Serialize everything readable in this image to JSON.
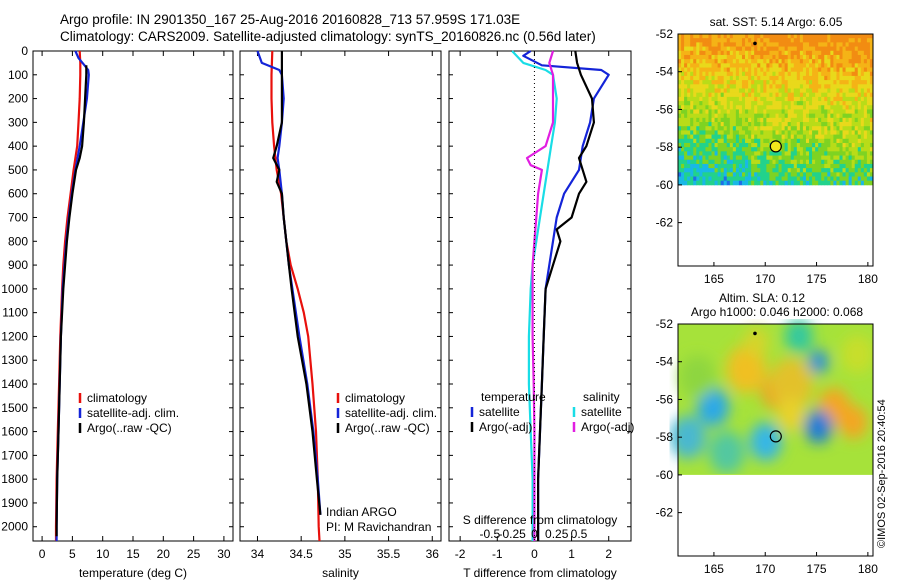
{
  "header": {
    "line1": "Argo profile: IN 2901350_167 25-Aug-2016 20160828_713 57.959S 171.03E",
    "line2": "Climatology: CARS2009. Satellite-adjusted climatology: synTS_20160826.nc (0.56d later)"
  },
  "credit": "©IMOS 02-Sep-2016 20:40:54",
  "colors": {
    "climatology": "#e8100c",
    "satellite": "#1424d8",
    "argo": "#000000",
    "cyan": "#19dde6",
    "magenta": "#e11ee1"
  },
  "chart_data": [
    {
      "type": "line",
      "panel": "temperature",
      "xlabel": "temperature (deg C)",
      "ylabel": "",
      "xlim": [
        -1.5,
        31.5
      ],
      "ylim": [
        2060,
        0
      ],
      "xticks": [
        0,
        5,
        10,
        15,
        20,
        25,
        30
      ],
      "yticks": [
        0,
        100,
        200,
        300,
        400,
        500,
        600,
        700,
        800,
        900,
        1000,
        1100,
        1200,
        1300,
        1400,
        1500,
        1600,
        1700,
        1800,
        1900,
        2000
      ],
      "legend": [
        "climatology",
        "satellite-adj. clim.",
        "Argo(..raw -QC)"
      ],
      "series": [
        {
          "name": "climatology",
          "color": "climatology",
          "y": [
            0,
            50,
            100,
            200,
            300,
            400,
            500,
            600,
            700,
            800,
            900,
            1000,
            1200,
            1400,
            1600,
            1800,
            2000,
            2060
          ],
          "x": [
            6.2,
            6.3,
            6.3,
            6.2,
            6.0,
            5.8,
            5.2,
            4.7,
            4.2,
            3.8,
            3.5,
            3.3,
            3.0,
            2.8,
            2.6,
            2.4,
            2.3,
            2.3
          ]
        },
        {
          "name": "satellite-adj. clim.",
          "color": "satellite",
          "y": [
            0,
            30,
            60,
            80,
            100,
            200,
            300,
            400,
            500,
            600,
            700,
            800,
            900,
            1000,
            1200,
            1400,
            1600,
            1800,
            2000,
            2060
          ],
          "x": [
            5.5,
            6.0,
            7.0,
            7.6,
            7.7,
            7.4,
            6.8,
            6.2,
            5.5,
            4.9,
            4.4,
            4.0,
            3.7,
            3.4,
            3.1,
            2.9,
            2.7,
            2.5,
            2.4,
            2.4
          ]
        },
        {
          "name": "Argo(..raw -QC)",
          "color": "argo",
          "y": [
            60,
            100,
            150,
            200,
            300,
            400,
            450,
            500,
            600,
            700,
            800,
            900,
            1000,
            1200,
            1400,
            1600,
            1800,
            2000,
            2040
          ],
          "x": [
            7.3,
            7.3,
            7.2,
            7.1,
            6.9,
            6.6,
            6.2,
            5.6,
            5.0,
            4.5,
            4.1,
            3.8,
            3.5,
            3.1,
            2.9,
            2.7,
            2.5,
            2.4,
            2.4
          ]
        }
      ]
    },
    {
      "type": "line",
      "panel": "salinity",
      "xlabel": "salinity",
      "xlim": [
        33.8,
        36.1
      ],
      "ylim": [
        2060,
        0
      ],
      "xticks": [
        34,
        34.5,
        35,
        35.5,
        36
      ],
      "legend": [
        "climatology",
        "satellite-adj. clim.",
        "Argo(..raw -QC)"
      ],
      "annotation": [
        "Indian ARGO",
        "PI: M Ravichandran"
      ],
      "series": [
        {
          "name": "climatology",
          "color": "climatology",
          "y": [
            0,
            100,
            200,
            300,
            400,
            500,
            600,
            700,
            800,
            900,
            1000,
            1100,
            1200,
            1400,
            1600,
            1800,
            2000,
            2060
          ],
          "x": [
            34.17,
            34.16,
            34.16,
            34.17,
            34.19,
            34.22,
            34.27,
            34.3,
            34.33,
            34.38,
            34.46,
            34.53,
            34.58,
            34.63,
            34.67,
            34.69,
            34.7,
            34.71
          ]
        },
        {
          "name": "satellite-adj. clim.",
          "color": "satellite",
          "y": [
            0,
            50,
            80,
            100,
            200,
            300,
            400,
            450,
            500,
            600,
            700,
            800,
            900,
            1000,
            1200,
            1400,
            1600,
            1800,
            1950
          ],
          "x": [
            34.0,
            34.05,
            34.25,
            34.28,
            34.3,
            34.28,
            34.25,
            34.23,
            34.25,
            34.28,
            34.3,
            34.33,
            34.36,
            34.4,
            34.48,
            34.57,
            34.64,
            34.69,
            34.72
          ]
        },
        {
          "name": "Argo(..raw -QC)",
          "color": "argo",
          "y": [
            0,
            100,
            200,
            300,
            400,
            450,
            500,
            550,
            600,
            700,
            800,
            900,
            1000,
            1200,
            1400,
            1600,
            1800,
            1950
          ],
          "x": [
            34.28,
            34.28,
            34.28,
            34.28,
            34.22,
            34.18,
            34.25,
            34.22,
            34.28,
            34.3,
            34.33,
            34.36,
            34.39,
            34.46,
            34.56,
            34.63,
            34.68,
            34.72
          ]
        }
      ]
    },
    {
      "type": "line",
      "panel": "difference",
      "xlabel": "T difference from climatology",
      "xlabel_top": "S difference from climatology",
      "xlim": [
        -2.3,
        2.6
      ],
      "ylim": [
        2060,
        0
      ],
      "xticks": [
        -2,
        -1,
        0,
        1,
        2
      ],
      "xticks_s": [
        "-0.5",
        "-0.25",
        "0",
        "0.25",
        "0.5"
      ],
      "legend_titles": [
        "temperature",
        "salinity"
      ],
      "legend": [
        "satellite",
        "Argo(-adj)",
        "satellite",
        "Argo(-adj)"
      ],
      "series": [
        {
          "name": "satellite",
          "color": "satellite",
          "y": [
            0,
            20,
            60,
            80,
            100,
            200,
            300,
            400,
            500,
            600,
            700,
            800,
            900,
            1000,
            1200,
            1400,
            1600,
            1800,
            2000,
            2060
          ],
          "x": [
            -0.1,
            -0.3,
            0.2,
            1.8,
            2.0,
            1.6,
            1.5,
            1.3,
            1.2,
            0.8,
            0.6,
            0.5,
            0.4,
            0.3,
            0.25,
            0.2,
            0.15,
            0.1,
            0.1,
            0.1
          ]
        },
        {
          "name": "Argo(-adj)",
          "color": "argo",
          "y": [
            0,
            50,
            100,
            200,
            300,
            400,
            450,
            500,
            550,
            600,
            700,
            750,
            800,
            900,
            1000,
            1200,
            1400,
            1600,
            1800,
            2000,
            2060
          ],
          "x": [
            1.1,
            1.15,
            1.25,
            1.55,
            1.6,
            1.4,
            1.2,
            1.3,
            1.4,
            1.2,
            1.0,
            0.6,
            0.7,
            0.5,
            0.3,
            0.25,
            0.2,
            0.15,
            0.1,
            0.1,
            0.1
          ]
        },
        {
          "name": "satellite",
          "color": "cyan",
          "y": [
            0,
            50,
            80,
            100,
            200,
            300,
            400,
            500,
            600,
            700,
            800,
            900,
            1000,
            1200,
            1400,
            1600,
            1800,
            2000,
            2060
          ],
          "x": [
            -0.6,
            -0.3,
            0.3,
            0.5,
            0.6,
            0.55,
            0.45,
            0.35,
            0.25,
            0.15,
            0.05,
            -0.05,
            -0.1,
            -0.15,
            -0.15,
            -0.1,
            -0.05,
            -0.05,
            -0.05
          ]
        },
        {
          "name": "Argo(-adj)",
          "color": "magenta",
          "y": [
            0,
            50,
            100,
            200,
            300,
            400,
            450,
            480,
            500,
            600,
            700,
            800,
            900,
            1000,
            1200,
            1400,
            1600,
            1800,
            2000,
            2060
          ],
          "x": [
            0.5,
            0.4,
            0.5,
            0.5,
            0.5,
            0.3,
            -0.2,
            -0.1,
            0.2,
            0.1,
            0.05,
            0.0,
            -0.05,
            -0.05,
            -0.05,
            -0.02,
            0.0,
            0.0,
            0.0,
            0.0
          ]
        }
      ]
    },
    {
      "type": "heatmap",
      "panel": "SST map",
      "title": "sat. SST: 5.14  Argo: 6.05",
      "xlim": [
        161.5,
        180.5
      ],
      "ylim": [
        -64.3,
        -52
      ],
      "xticks": [
        165,
        170,
        175,
        180
      ],
      "yticks": [
        -52,
        -54,
        -56,
        -58,
        -60,
        -62
      ],
      "data_extent_lat": [
        -60,
        -52
      ],
      "argo_position": {
        "lon": 171.03,
        "lat": -57.959
      },
      "prev_position": {
        "lon": 169.0,
        "lat": -52.5
      }
    },
    {
      "type": "heatmap",
      "panel": "altimetry map",
      "title": "Altim. SLA: 0.12",
      "subtitle": "Argo h1000: 0.046 h2000: 0.068",
      "xlim": [
        161.5,
        180.5
      ],
      "ylim": [
        -64.3,
        -52
      ],
      "xticks": [
        165,
        170,
        175,
        180
      ],
      "yticks": [
        -52,
        -54,
        -56,
        -58,
        -60,
        -62
      ],
      "data_extent_lat": [
        -60,
        -52
      ],
      "argo_position": {
        "lon": 171.03,
        "lat": -57.959
      },
      "prev_position": {
        "lon": 169.0,
        "lat": -52.5
      }
    }
  ]
}
